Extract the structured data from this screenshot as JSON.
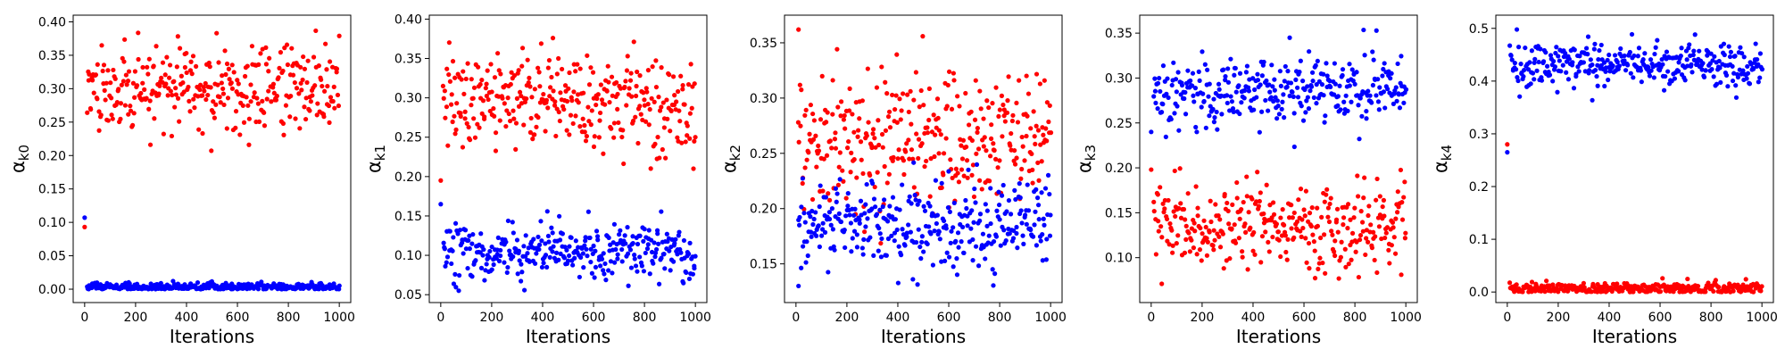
{
  "figure": {
    "panel_count": 5,
    "series_colors": {
      "red": "#ff0000",
      "blue": "#0000ff"
    }
  },
  "chart_data": [
    {
      "type": "scatter",
      "title": "",
      "xlabel": "Iterations",
      "ylabel_symbol": "α",
      "ylabel_subscript": "k0",
      "xlim": [
        -45,
        1045
      ],
      "ylim": [
        -0.02,
        0.41
      ],
      "xticks": [
        0,
        200,
        400,
        600,
        800,
        1000
      ],
      "yticks": [
        0.0,
        0.05,
        0.1,
        0.15,
        0.2,
        0.25,
        0.3,
        0.35,
        0.4
      ],
      "ytick_labels": [
        "0.00",
        "0.05",
        "0.10",
        "0.15",
        "0.20",
        "0.25",
        "0.30",
        "0.35",
        "0.40"
      ],
      "grid": false,
      "legend": "none",
      "series": [
        {
          "color": "#ff0000",
          "x_start": 10,
          "x_end": 1000,
          "count": 330,
          "center": 0.298,
          "spread": 0.032,
          "min": 0.2,
          "max": 0.4,
          "initial_points": [
            {
              "x": 0,
              "y": 0.093
            }
          ]
        },
        {
          "color": "#0000ff",
          "x_start": 10,
          "x_end": 1000,
          "count": 330,
          "center": 0.003,
          "spread": 0.003,
          "min": 0.0,
          "max": 0.018,
          "initial_points": [
            {
              "x": 0,
              "y": 0.107
            }
          ]
        }
      ]
    },
    {
      "type": "scatter",
      "title": "",
      "xlabel": "Iterations",
      "ylabel_symbol": "α",
      "ylabel_subscript": "k1",
      "xlim": [
        -45,
        1045
      ],
      "ylim": [
        0.04,
        0.405
      ],
      "xticks": [
        0,
        200,
        400,
        600,
        800,
        1000
      ],
      "yticks": [
        0.05,
        0.1,
        0.15,
        0.2,
        0.25,
        0.3,
        0.35,
        0.4
      ],
      "ytick_labels": [
        "0.05",
        "0.10",
        "0.15",
        "0.20",
        "0.25",
        "0.30",
        "0.35",
        "0.40"
      ],
      "grid": false,
      "legend": "none",
      "series": [
        {
          "color": "#ff0000",
          "x_start": 10,
          "x_end": 1000,
          "count": 330,
          "center": 0.296,
          "spread": 0.03,
          "min": 0.195,
          "max": 0.39,
          "initial_points": [
            {
              "x": 0,
              "y": 0.195
            }
          ]
        },
        {
          "color": "#0000ff",
          "x_start": 10,
          "x_end": 1000,
          "count": 330,
          "center": 0.107,
          "spread": 0.018,
          "min": 0.055,
          "max": 0.16,
          "initial_points": [
            {
              "x": 0,
              "y": 0.165
            }
          ]
        }
      ]
    },
    {
      "type": "scatter",
      "title": "",
      "xlabel": "Iterations",
      "ylabel_symbol": "α",
      "ylabel_subscript": "k2",
      "xlim": [
        -45,
        1045
      ],
      "ylim": [
        0.115,
        0.375
      ],
      "xticks": [
        0,
        200,
        400,
        600,
        800,
        1000
      ],
      "yticks": [
        0.15,
        0.2,
        0.25,
        0.3,
        0.35
      ],
      "ytick_labels": [
        "0.15",
        "0.20",
        "0.25",
        "0.30",
        "0.35"
      ],
      "grid": false,
      "legend": "none",
      "series": [
        {
          "color": "#ff0000",
          "x_start": 10,
          "x_end": 1000,
          "count": 330,
          "center": 0.265,
          "spread": 0.03,
          "min": 0.165,
          "max": 0.37,
          "initial_points": [
            {
              "x": 10,
              "y": 0.362
            }
          ]
        },
        {
          "color": "#0000ff",
          "x_start": 10,
          "x_end": 1000,
          "count": 330,
          "center": 0.185,
          "spread": 0.02,
          "min": 0.127,
          "max": 0.245,
          "initial_points": [
            {
              "x": 10,
              "y": 0.13
            }
          ]
        }
      ]
    },
    {
      "type": "scatter",
      "title": "",
      "xlabel": "Iterations",
      "ylabel_symbol": "α",
      "ylabel_subscript": "k3",
      "xlim": [
        -45,
        1045
      ],
      "ylim": [
        0.05,
        0.37
      ],
      "xticks": [
        0,
        200,
        400,
        600,
        800,
        1000
      ],
      "yticks": [
        0.1,
        0.15,
        0.2,
        0.25,
        0.3,
        0.35
      ],
      "ytick_labels": [
        "0.10",
        "0.15",
        "0.20",
        "0.25",
        "0.30",
        "0.35"
      ],
      "grid": false,
      "legend": "none",
      "series": [
        {
          "color": "#0000ff",
          "x_start": 10,
          "x_end": 1000,
          "count": 330,
          "center": 0.285,
          "spread": 0.02,
          "min": 0.222,
          "max": 0.355,
          "initial_points": [
            {
              "x": 0,
              "y": 0.24
            }
          ]
        },
        {
          "color": "#ff0000",
          "x_start": 10,
          "x_end": 1000,
          "count": 330,
          "center": 0.135,
          "spread": 0.025,
          "min": 0.07,
          "max": 0.205,
          "initial_points": [
            {
              "x": 0,
              "y": 0.198
            }
          ]
        }
      ]
    },
    {
      "type": "scatter",
      "title": "",
      "xlabel": "Iterations",
      "ylabel_symbol": "α",
      "ylabel_subscript": "k4",
      "xlim": [
        -45,
        1045
      ],
      "ylim": [
        -0.02,
        0.525
      ],
      "xticks": [
        0,
        200,
        400,
        600,
        800,
        1000
      ],
      "yticks": [
        0.0,
        0.1,
        0.2,
        0.3,
        0.4,
        0.5
      ],
      "ytick_labels": [
        "0.0",
        "0.1",
        "0.2",
        "0.3",
        "0.4",
        "0.5"
      ],
      "grid": false,
      "legend": "none",
      "series": [
        {
          "color": "#0000ff",
          "x_start": 10,
          "x_end": 1000,
          "count": 330,
          "center": 0.43,
          "spread": 0.02,
          "min": 0.36,
          "max": 0.5,
          "initial_points": [
            {
              "x": 0,
              "y": 0.265
            }
          ]
        },
        {
          "color": "#ff0000",
          "x_start": 10,
          "x_end": 1000,
          "count": 330,
          "center": 0.006,
          "spread": 0.006,
          "min": 0.0,
          "max": 0.055,
          "initial_points": [
            {
              "x": 0,
              "y": 0.28
            }
          ]
        }
      ]
    }
  ]
}
